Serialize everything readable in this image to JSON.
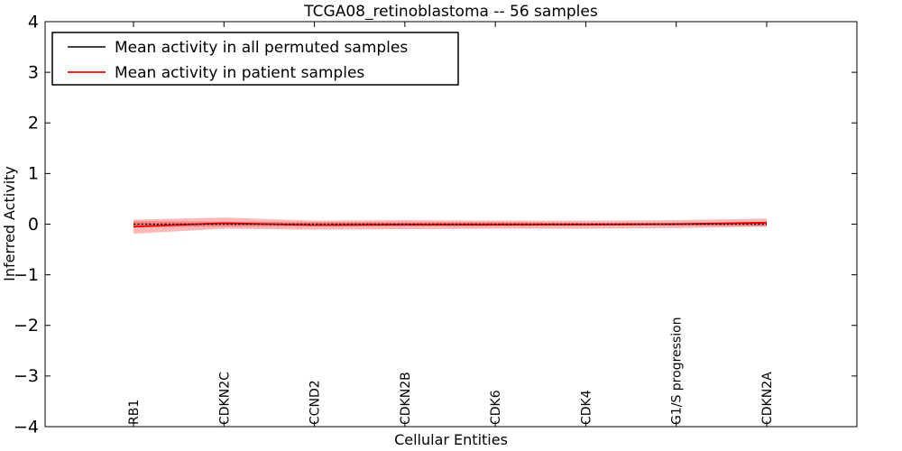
{
  "chart_data": {
    "type": "line",
    "title": "TCGA08_retinoblastoma -- 56 samples",
    "xlabel": "Cellular Entities",
    "ylabel": "Inferred Activity",
    "ylim": [
      -4,
      4
    ],
    "ytick_step": 1,
    "grid": false,
    "legend_position": "upper left",
    "categories": [
      "RB1",
      "CDKN2C",
      "CCND2",
      "CDKN2B",
      "CDK6",
      "CDK4",
      "G1/S progression",
      "CDKN2A"
    ],
    "series": [
      {
        "name": "Mean activity in all permuted samples",
        "color": "#000000",
        "style": "dashed",
        "values": [
          0.0,
          0.0,
          0.0,
          0.0,
          0.0,
          0.0,
          0.0,
          0.0
        ],
        "band": [
          0.06,
          0.05,
          0.04,
          0.04,
          0.04,
          0.03,
          0.03,
          0.04
        ]
      },
      {
        "name": "Mean activity in patient samples",
        "color": "#ff0000",
        "style": "solid",
        "values": [
          -0.05,
          0.02,
          -0.02,
          -0.01,
          -0.01,
          -0.01,
          0.0,
          0.03
        ],
        "band": [
          0.14,
          0.11,
          0.09,
          0.09,
          0.08,
          0.08,
          0.08,
          0.08
        ]
      }
    ],
    "band_color": "#ff0000",
    "band_opacity": 0.28,
    "legend": [
      {
        "label": "Mean activity in all permuted samples",
        "color": "#000000"
      },
      {
        "label": "Mean activity in patient samples",
        "color": "#ff0000"
      }
    ]
  }
}
